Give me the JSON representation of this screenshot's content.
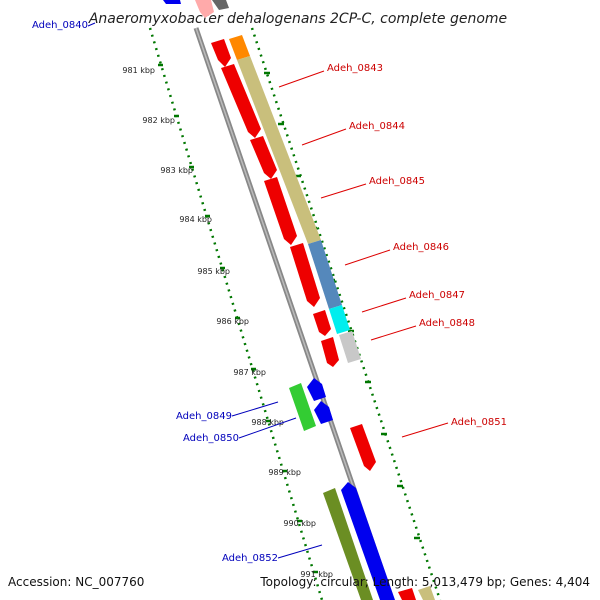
{
  "title": "Anaeromyxobacter dehalogenans 2CP-C, complete genome",
  "accession": "Accession: NC_007760",
  "summary": "Topology: circular; Length: 5,013,479 bp; Genes: 4,404",
  "colors": {
    "strand_pos": "#cc0000",
    "strand_neg": "#0000bb",
    "ruler": "#007700",
    "backbone": "#888888"
  },
  "ruler_labels": [
    "981 kbp",
    "982 kbp",
    "983 kbp",
    "984 kbp",
    "985 kbp",
    "986 kbp",
    "987 kbp",
    "988 kbp",
    "989 kbp",
    "990 kbp",
    "991 kbp"
  ],
  "gene_labels": [
    {
      "name": "Adeh_0840",
      "strand": "neg"
    },
    {
      "name": "Adeh_0843",
      "strand": "pos"
    },
    {
      "name": "Adeh_0844",
      "strand": "pos"
    },
    {
      "name": "Adeh_0845",
      "strand": "pos"
    },
    {
      "name": "Adeh_0846",
      "strand": "pos"
    },
    {
      "name": "Adeh_0847",
      "strand": "pos"
    },
    {
      "name": "Adeh_0848",
      "strand": "pos"
    },
    {
      "name": "Adeh_0849",
      "strand": "neg"
    },
    {
      "name": "Adeh_0850",
      "strand": "neg"
    },
    {
      "name": "Adeh_0851",
      "strand": "pos"
    },
    {
      "name": "Adeh_0852",
      "strand": "neg"
    }
  ]
}
